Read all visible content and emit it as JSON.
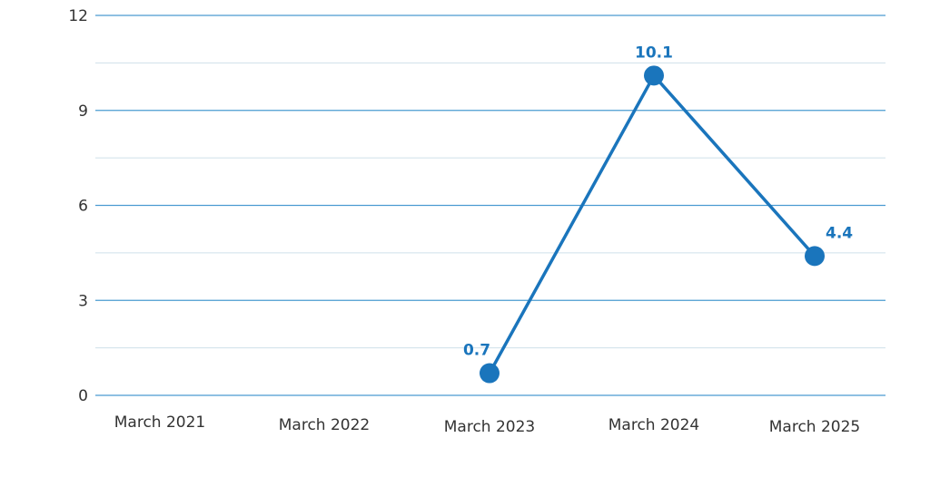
{
  "chart_data": {
    "type": "line",
    "title": "",
    "xlabel": "",
    "ylabel": "",
    "categories": [
      "March 2021",
      "March 2022",
      "March 2023",
      "March 2024",
      "March 2025"
    ],
    "series": [
      {
        "values": [
          null,
          null,
          0.7,
          10.1,
          4.4
        ],
        "color": "#1a75bc"
      }
    ],
    "ylim": [
      0,
      12
    ],
    "yticks": [
      "0",
      "3",
      "6",
      "9",
      "12"
    ],
    "grid": true,
    "legend": "none",
    "colors": {
      "line": "#1a75bc",
      "major_grid": "#4a9bd1",
      "minor_grid": "#cfe0ea"
    }
  }
}
